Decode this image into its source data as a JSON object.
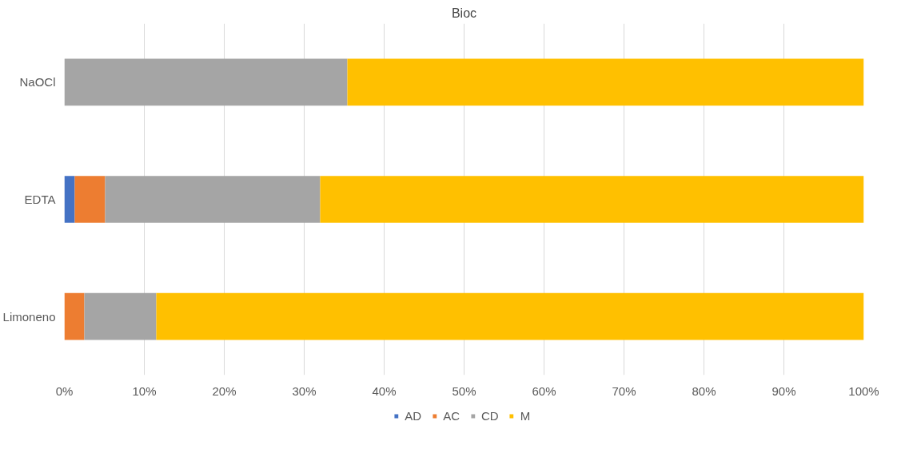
{
  "chart_data": {
    "type": "bar",
    "title": "Bioc",
    "orientation": "horizontal",
    "stacked": true,
    "categories": [
      "NaOCl",
      "EDTA",
      "Limoneno"
    ],
    "series": [
      {
        "name": "AD",
        "color": "#4472c4",
        "values": [
          0,
          1.3,
          0
        ]
      },
      {
        "name": "AC",
        "color": "#ed7d31",
        "values": [
          0,
          3.8,
          2.5
        ]
      },
      {
        "name": "CD",
        "color": "#a5a5a5",
        "values": [
          35.4,
          26.9,
          9.0
        ]
      },
      {
        "name": "M",
        "color": "#ffc000",
        "values": [
          64.6,
          68.0,
          88.5
        ]
      }
    ],
    "xlim": [
      0,
      100
    ],
    "xticks": [
      {
        "value": 0,
        "label": "0%"
      },
      {
        "value": 10,
        "label": "10%"
      },
      {
        "value": 20,
        "label": "20%"
      },
      {
        "value": 30,
        "label": "30%"
      },
      {
        "value": 40,
        "label": "40%"
      },
      {
        "value": 50,
        "label": "50%"
      },
      {
        "value": 60,
        "label": "60%"
      },
      {
        "value": 70,
        "label": "70%"
      },
      {
        "value": 80,
        "label": "80%"
      },
      {
        "value": 90,
        "label": "90%"
      },
      {
        "value": 100,
        "label": "100%"
      }
    ],
    "grid": "x",
    "legend": "bottom"
  }
}
